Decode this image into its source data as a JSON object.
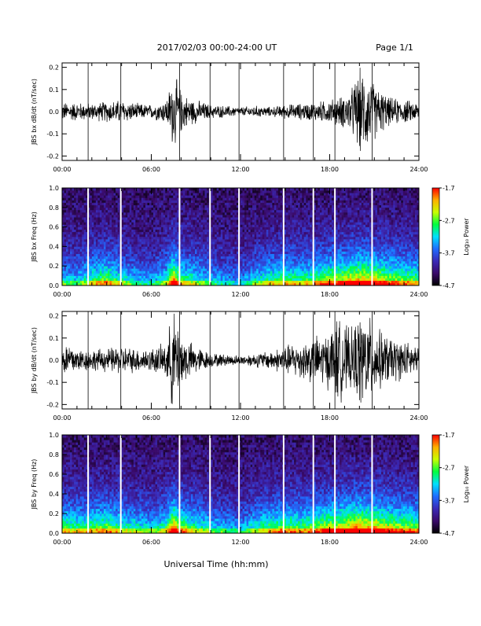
{
  "header": {
    "date_range": "2017/02/03  00:00-24:00 UT",
    "page": "Page 1/1"
  },
  "x_axis": {
    "label": "Universal Time (hh:mm)",
    "tick_labels": [
      "00:00",
      "06:00",
      "12:00",
      "18:00",
      "24:00"
    ],
    "range_hours": [
      0,
      24
    ]
  },
  "colorbar": {
    "label": "Log₁₀ Power",
    "tick_labels": [
      "-1.7",
      "-2.7",
      "-3.7",
      "-4.7"
    ],
    "range": [
      -4.7,
      -1.7
    ],
    "colormap": [
      "#000000",
      "#3a0a6a",
      "#3a2ab8",
      "#1f6cff",
      "#00e0ff",
      "#00ff40",
      "#c8ff00",
      "#ffb000",
      "#ff0000"
    ]
  },
  "data_gap_hours": [
    1.75,
    3.95,
    7.9,
    9.95,
    11.9,
    14.9,
    16.9,
    18.35,
    20.85
  ],
  "chart_data": [
    {
      "type": "line",
      "id": "bx_wave",
      "ylabel": "JBS bx dB/dt (nT/sec)",
      "ylim": [
        -0.22,
        0.22
      ],
      "ytick_labels": [
        "0.2",
        "0.1",
        "0.0",
        "-0.1",
        "-0.2"
      ],
      "envelope_x_hours": [
        0,
        1,
        2,
        3,
        4,
        5,
        6,
        7,
        7.4,
        7.6,
        8,
        8.5,
        9,
        10,
        11,
        12,
        13,
        14,
        15,
        16,
        17,
        18,
        19,
        19.5,
        20,
        20.5,
        21,
        22,
        23,
        24
      ],
      "envelope_amplitude": [
        0.04,
        0.04,
        0.035,
        0.045,
        0.05,
        0.035,
        0.03,
        0.05,
        0.14,
        0.15,
        0.09,
        0.06,
        0.05,
        0.03,
        0.025,
        0.02,
        0.025,
        0.02,
        0.03,
        0.035,
        0.04,
        0.05,
        0.07,
        0.1,
        0.18,
        0.16,
        0.12,
        0.06,
        0.05,
        0.04
      ]
    },
    {
      "type": "heatmap",
      "id": "bx_spec",
      "ylabel": "JBS bx Freq (Hz)",
      "ylim": [
        0.0,
        1.0
      ],
      "ytick_labels": [
        "1.0",
        "0.8",
        "0.6",
        "0.4",
        "0.2",
        "0.0"
      ],
      "activity_x_hours": [
        0,
        1,
        2,
        3,
        4,
        5,
        6,
        7,
        7.5,
        8,
        9,
        10,
        11,
        12,
        13,
        14,
        15,
        16,
        17,
        18,
        19,
        20,
        21,
        22,
        23,
        24
      ],
      "activity_level": [
        0.45,
        0.4,
        0.55,
        0.65,
        0.5,
        0.4,
        0.35,
        0.5,
        0.9,
        0.6,
        0.5,
        0.4,
        0.35,
        0.3,
        0.45,
        0.55,
        0.6,
        0.55,
        0.6,
        0.7,
        0.75,
        0.85,
        0.8,
        0.7,
        0.65,
        0.6
      ]
    },
    {
      "type": "line",
      "id": "by_wave",
      "ylabel": "JBS by dB/dt (nT/sec)",
      "ylim": [
        -0.22,
        0.22
      ],
      "ytick_labels": [
        "0.2",
        "0.1",
        "0.0",
        "-0.1",
        "-0.2"
      ],
      "envelope_x_hours": [
        0,
        0.5,
        1,
        2,
        3,
        4,
        5,
        6,
        7,
        7.4,
        7.6,
        8,
        8.5,
        9,
        10,
        11,
        12,
        13,
        14,
        15,
        16,
        17,
        18,
        18.5,
        19,
        19.5,
        20,
        20.5,
        21,
        22,
        23,
        24
      ],
      "envelope_amplitude": [
        0.06,
        0.08,
        0.05,
        0.045,
        0.05,
        0.06,
        0.05,
        0.05,
        0.07,
        0.2,
        0.2,
        0.12,
        0.08,
        0.06,
        0.03,
        0.025,
        0.02,
        0.03,
        0.04,
        0.06,
        0.08,
        0.1,
        0.12,
        0.18,
        0.15,
        0.13,
        0.2,
        0.2,
        0.14,
        0.1,
        0.08,
        0.06
      ]
    },
    {
      "type": "heatmap",
      "id": "by_spec",
      "ylabel": "JBS by Freq (Hz)",
      "ylim": [
        0.0,
        1.0
      ],
      "ytick_labels": [
        "1.0",
        "0.8",
        "0.6",
        "0.4",
        "0.2",
        "0.0"
      ],
      "activity_x_hours": [
        0,
        1,
        2,
        3,
        4,
        5,
        6,
        7,
        7.5,
        8,
        9,
        10,
        11,
        12,
        13,
        14,
        15,
        16,
        17,
        18,
        19,
        20,
        21,
        22,
        23,
        24
      ],
      "activity_level": [
        0.6,
        0.55,
        0.6,
        0.65,
        0.55,
        0.5,
        0.45,
        0.55,
        0.9,
        0.65,
        0.55,
        0.45,
        0.4,
        0.35,
        0.5,
        0.6,
        0.65,
        0.6,
        0.65,
        0.75,
        0.8,
        0.9,
        0.85,
        0.75,
        0.7,
        0.65
      ]
    }
  ]
}
